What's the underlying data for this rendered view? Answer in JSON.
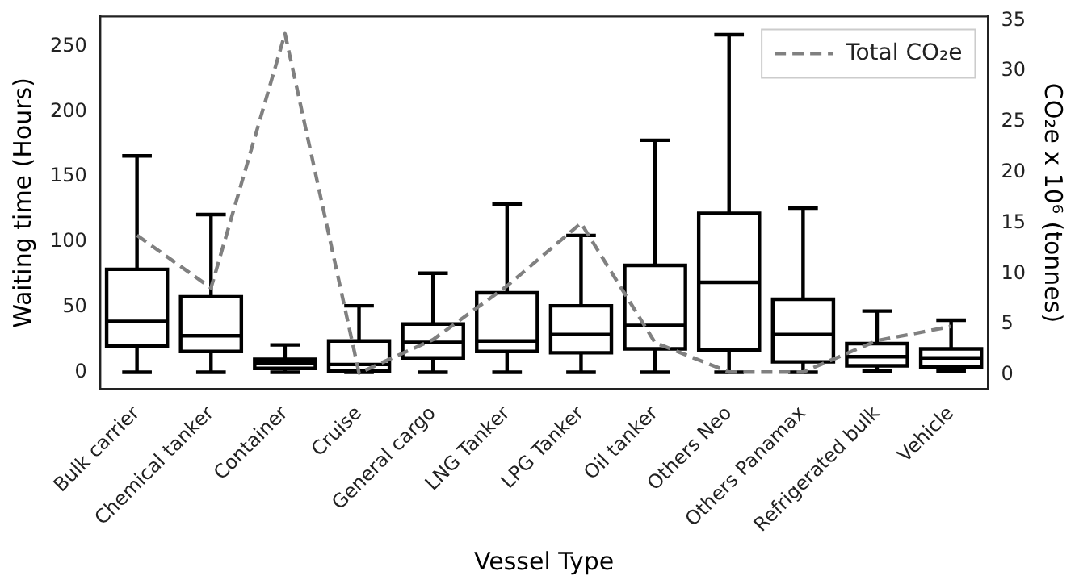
{
  "chart_data": {
    "type": "box",
    "xlabel": "Vessel Type",
    "ylabel": "Waiting time (Hours)",
    "y2label": "CO₂e x 10⁶ (tonnes)",
    "categories": [
      "Bulk carrier",
      "Chemical tanker",
      "Container",
      "Cruise",
      "General cargo",
      "LNG Tanker",
      "LPG Tanker",
      "Oil tanker",
      "Others Neo",
      "Others Panamax",
      "Refrigerated bulk",
      "Vehicle"
    ],
    "ylim": [
      -13,
      273
    ],
    "yticks": [
      0,
      50,
      100,
      150,
      200,
      250
    ],
    "y2lim": [
      -1.4,
      35.4
    ],
    "y2ticks": [
      0,
      5,
      10,
      15,
      20,
      25,
      30,
      35
    ],
    "grid": false,
    "legend": "top right",
    "series": [
      {
        "color": "#000000",
        "boxes": [
          {
            "low": 0,
            "q1": 20,
            "median": 39,
            "q3": 79,
            "high": 166
          },
          {
            "low": 0,
            "q1": 16,
            "median": 28,
            "q3": 58,
            "high": 121
          },
          {
            "low": 0,
            "q1": 3,
            "median": 7,
            "q3": 10,
            "high": 21
          },
          {
            "low": 0,
            "q1": 1,
            "median": 6,
            "q3": 24,
            "high": 51
          },
          {
            "low": 0,
            "q1": 11,
            "median": 23,
            "q3": 37,
            "high": 76
          },
          {
            "low": 0,
            "q1": 16,
            "median": 24,
            "q3": 61,
            "high": 129
          },
          {
            "low": 0,
            "q1": 15,
            "median": 29,
            "q3": 51,
            "high": 105
          },
          {
            "low": 0,
            "q1": 18,
            "median": 36,
            "q3": 82,
            "high": 178
          },
          {
            "low": 0,
            "q1": 17,
            "median": 69,
            "q3": 122,
            "high": 259
          },
          {
            "low": 0,
            "q1": 8,
            "median": 29,
            "q3": 56,
            "high": 126
          },
          {
            "low": 1,
            "q1": 5,
            "median": 12,
            "q3": 22,
            "high": 47
          },
          {
            "low": 1,
            "q1": 4,
            "median": 11,
            "q3": 18,
            "high": 40
          }
        ]
      },
      {
        "type": "line",
        "name": "Total CO₂e",
        "axis": "y2",
        "color": "#808080",
        "line_style": "dashed",
        "marker": "none",
        "values": [
          13.8,
          8.6,
          33.7,
          0.2,
          3.5,
          8.8,
          15,
          3.2,
          0.3,
          0.3,
          3.4,
          4.8
        ]
      }
    ]
  }
}
